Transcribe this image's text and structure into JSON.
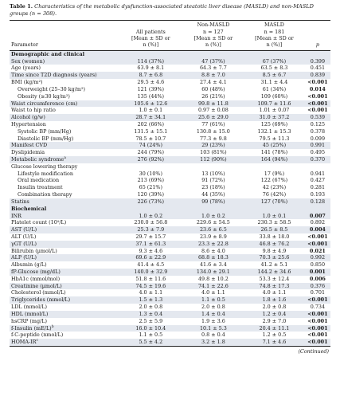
{
  "caption": {
    "label": "Table 1.",
    "text": "Characteristics of the metabolic dysfunction-associated steatotic liver disease (MASLD) and non-MASLD groups (n = 308)."
  },
  "columns": {
    "parameter": "Parameter",
    "all": [
      "",
      "All patients",
      "[Mean ± SD or",
      "n (%)]"
    ],
    "non": [
      "Non-MASLD",
      "n = 127",
      "[Mean ± SD or",
      "n (%)]"
    ],
    "masld": [
      "MASLD",
      "n = 181",
      "[Mean ± SD or",
      "n (%)]"
    ],
    "p": "p"
  },
  "rows": [
    {
      "type": "section",
      "label": "Demographic and clinical"
    },
    {
      "label": "Sex (women)",
      "all": "114 (37%)",
      "non": "47 (37%)",
      "masld": "67 (37%)",
      "p": "0.399",
      "pb": false,
      "shade": true,
      "ind": 0
    },
    {
      "label": "Age (years)",
      "all": "63.9 ± 8.1",
      "non": "64.3 ± 7.7",
      "masld": "63.5 ± 8.3",
      "p": "0.451",
      "pb": false,
      "shade": false,
      "ind": 0
    },
    {
      "label": "Time since T2D diagnosis (years)",
      "all": "8.7 ± 6.8",
      "non": "8.8 ± 7.0",
      "masld": "8.5 ± 6.7",
      "p": "0.839",
      "pb": false,
      "shade": true,
      "ind": 0
    },
    {
      "label": "BMI (kg/m²)",
      "all": "29.5 ± 4.6",
      "non": "27.4 ± 4.1",
      "masld": "31.1 ± 4.4",
      "p": "<0.001",
      "pb": true,
      "shade": false,
      "ind": 0
    },
    {
      "label": "Overweight (25–30 kg/m²)",
      "all": "121 (39%)",
      "non": "60 (48%)",
      "masld": "61 (34%)",
      "p": "0.014",
      "pb": true,
      "shade": false,
      "ind": 1
    },
    {
      "label": "Obesity (≥30 kg/m²)",
      "all": "135 (44%)",
      "non": "26 (21%)",
      "masld": "109 (60%)",
      "p": "<0.001",
      "pb": true,
      "shade": false,
      "ind": 1
    },
    {
      "label": "Waist circumference (cm)",
      "all": "105.6 ± 12.6",
      "non": "99.8 ± 11.8",
      "masld": "109.7 ± 11.6",
      "p": "<0.001",
      "pb": true,
      "shade": true,
      "ind": 0
    },
    {
      "label": "Waist to hip ratio",
      "all": "1.0 ± 0.1",
      "non": "0.97 ± 0.08",
      "masld": "1.01 ± 0.07",
      "p": "<0.001",
      "pb": true,
      "shade": false,
      "ind": 0
    },
    {
      "label": "Alcohol (g/w)",
      "all": "28.7 ± 34.1",
      "non": "25.6 ± 29.0",
      "masld": "31.0 ± 37.2",
      "p": "0.539",
      "pb": false,
      "shade": true,
      "ind": 0
    },
    {
      "label": "Hypertension",
      "all": "202 (66%)",
      "non": "77 (61%)",
      "masld": "125 (69%)",
      "p": "0.125",
      "pb": false,
      "shade": false,
      "ind": 0
    },
    {
      "label": "Systolic BP (mm/Hg)",
      "all": "131.5 ± 15.1",
      "non": "130.8 ± 15.0",
      "masld": "132.1 ± 15.3",
      "p": "0.378",
      "pb": false,
      "shade": false,
      "ind": 1
    },
    {
      "label": "Diastolic BP (mm/Hg)",
      "all": "78.5 ± 10.7",
      "non": "77.3 ± 9.8",
      "masld": "79.5 ± 11.3",
      "p": "0.099",
      "pb": false,
      "shade": false,
      "ind": 1
    },
    {
      "label": "Manifest CVD",
      "all": "74 (24%)",
      "non": "29 (23%)",
      "masld": "45 (25%)",
      "p": "0.991",
      "pb": false,
      "shade": true,
      "ind": 0
    },
    {
      "label": "Dyslipidemia",
      "all": "244 (79%)",
      "non": "103 (81%)",
      "masld": "141 (78%)",
      "p": "0.495",
      "pb": false,
      "shade": false,
      "ind": 0
    },
    {
      "label": "Metabolic syndrome",
      "sup": "a",
      "all": "276 (92%)",
      "non": "112 (90%)",
      "masld": "164 (94%)",
      "p": "0.370",
      "pb": false,
      "shade": true,
      "ind": 0
    },
    {
      "label": "Glucose lowering therapy",
      "all": "",
      "non": "",
      "masld": "",
      "p": "",
      "pb": false,
      "shade": false,
      "ind": 0
    },
    {
      "label": "Lifestyle modification",
      "all": "30 (10%)",
      "non": "13 (10%)",
      "masld": "17 (9%)",
      "p": "0.941",
      "pb": false,
      "shade": false,
      "ind": 1
    },
    {
      "label": "Oral medication",
      "all": "213 (69%)",
      "non": "91 (72%)",
      "masld": "122 (67%)",
      "p": "0.427",
      "pb": false,
      "shade": false,
      "ind": 1
    },
    {
      "label": "Insulin treatment",
      "all": "65 (21%)",
      "non": "23 (18%)",
      "masld": "42 (23%)",
      "p": "0.281",
      "pb": false,
      "shade": false,
      "ind": 1
    },
    {
      "label": "Combination therapy",
      "all": "120 (39%)",
      "non": "44 (35%)",
      "masld": "76 (42%)",
      "p": "0.193",
      "pb": false,
      "shade": false,
      "ind": 1
    },
    {
      "label": "Statins",
      "all": "226 (73%)",
      "non": "99 (78%)",
      "masld": "127 (70%)",
      "p": "0.128",
      "pb": false,
      "shade": true,
      "ind": 0
    },
    {
      "type": "section",
      "label": "Biochemical"
    },
    {
      "label": "INR",
      "all": "1.0 ± 0.2",
      "non": "1.0 ± 0.2",
      "masld": "1.0 ± 0.1",
      "p": "0.007",
      "pb": true,
      "shade": true,
      "ind": 0
    },
    {
      "label": "Platelet count (10⁹/L)",
      "all": "230.0 ± 56.8",
      "non": "229.6 ± 54.5",
      "masld": "230.3 ± 58.5",
      "p": "0.892",
      "pb": false,
      "shade": false,
      "ind": 0
    },
    {
      "label": "AST (U/L)",
      "all": "25.3 ± 7.9",
      "non": "23.6 ± 6.5",
      "masld": "26.5 ± 8.5",
      "p": "0.004",
      "pb": true,
      "shade": true,
      "ind": 0
    },
    {
      "label": "ALT (U/L)",
      "all": "29.7 ± 15.7",
      "non": "23.9 ± 8.9",
      "masld": "33.8 ± 18.0",
      "p": "<0.001",
      "pb": true,
      "shade": false,
      "ind": 0
    },
    {
      "label": "γGT (U/L)",
      "all": "37.1 ± 61.3",
      "non": "23.3 ± 22.8",
      "masld": "46.8 ± 76.2",
      "p": "<0.001",
      "pb": true,
      "shade": true,
      "ind": 0
    },
    {
      "label": "Bilirubin (µmol/L)",
      "all": "9.3 ± 4.6",
      "non": "8.6 ± 4.0",
      "masld": "9.8 ± 4.9",
      "p": "0.021",
      "pb": true,
      "shade": false,
      "ind": 0
    },
    {
      "label": "ALP (U/L)",
      "all": "69.6 ± 22.9",
      "non": "68.8 ± 18.3",
      "masld": "70.3 ± 25.6",
      "p": "0.992",
      "pb": false,
      "shade": true,
      "ind": 0
    },
    {
      "label": "Albumin (g/L)",
      "all": "41.4 ± 4.5",
      "non": "41.6 ± 3.4",
      "masld": "41.2 ± 5.1",
      "p": "0.850",
      "pb": false,
      "shade": false,
      "ind": 0
    },
    {
      "label": "fP-Glucose (mg/dL)",
      "all": "140.0 ± 32.9",
      "non": "134.0 ± 29.1",
      "masld": "144.2 ± 34.6",
      "p": "0.001",
      "pb": true,
      "shade": true,
      "ind": 0
    },
    {
      "label": "HbA1c (mmol/mol)",
      "all": "51.8 ± 11.6",
      "non": "49.8 ± 10.2",
      "masld": "53.3 ± 12.4",
      "p": "0.006",
      "pb": true,
      "shade": false,
      "ind": 0
    },
    {
      "label": "Creatinine (µmol/L)",
      "all": "74.5 ± 19.6",
      "non": "74.1 ± 22.6",
      "masld": "74.8 ± 17.3",
      "p": "0.376",
      "pb": false,
      "shade": true,
      "ind": 0
    },
    {
      "label": "Cholesterol (mmol/L)",
      "all": "4.0 ± 1.1",
      "non": "4.0 ± 1.1",
      "masld": "4.0 ± 1.1",
      "p": "0.701",
      "pb": false,
      "shade": false,
      "ind": 0
    },
    {
      "label": "Triglycerides (mmol/L)",
      "all": "1.5 ± 1.3",
      "non": "1.1 ± 0.5",
      "masld": "1.8 ± 1.6",
      "p": "<0.001",
      "pb": true,
      "shade": true,
      "ind": 0
    },
    {
      "label": "LDL (mmol/L)",
      "all": "2.0 ± 0.8",
      "non": "2.0 ± 0.8",
      "masld": "2.0 ± 0.8",
      "p": "0.734",
      "pb": false,
      "shade": false,
      "ind": 0
    },
    {
      "label": "HDL (mmol/L)",
      "all": "1.3 ± 0.4",
      "non": "1.4 ± 0.4",
      "masld": "1.2 ± 0.4",
      "p": "<0.001",
      "pb": true,
      "shade": true,
      "ind": 0
    },
    {
      "label": "hsCRP (mg/L)",
      "all": "2.5 ± 5.9",
      "non": "1.9 ± 3.6",
      "masld": "2.9 ± 7.0",
      "p": "<0.001",
      "pb": true,
      "shade": false,
      "ind": 0
    },
    {
      "label": "f-Insulin (mE/L)",
      "sup": "b",
      "all": "16.0 ± 10.4",
      "non": "10.1 ± 5.3",
      "masld": "20.4 ± 11.1",
      "p": "<0.001",
      "pb": true,
      "shade": true,
      "ind": 0
    },
    {
      "label": "f-C-peptide (nmol/L)",
      "all": "1.1 ± 0.5",
      "non": "0.8 ± 0.4",
      "masld": "1.2 ± 0.5",
      "p": "<0.001",
      "pb": true,
      "shade": false,
      "ind": 0
    },
    {
      "label": "HOMA-IR",
      "sup": "c",
      "all": "5.5 ± 4.2",
      "non": "3.2 ± 1.8",
      "masld": "7.1 ± 4.6",
      "p": "<0.001",
      "pb": true,
      "shade": true,
      "ind": 0
    }
  ],
  "continued": "(Continued)"
}
